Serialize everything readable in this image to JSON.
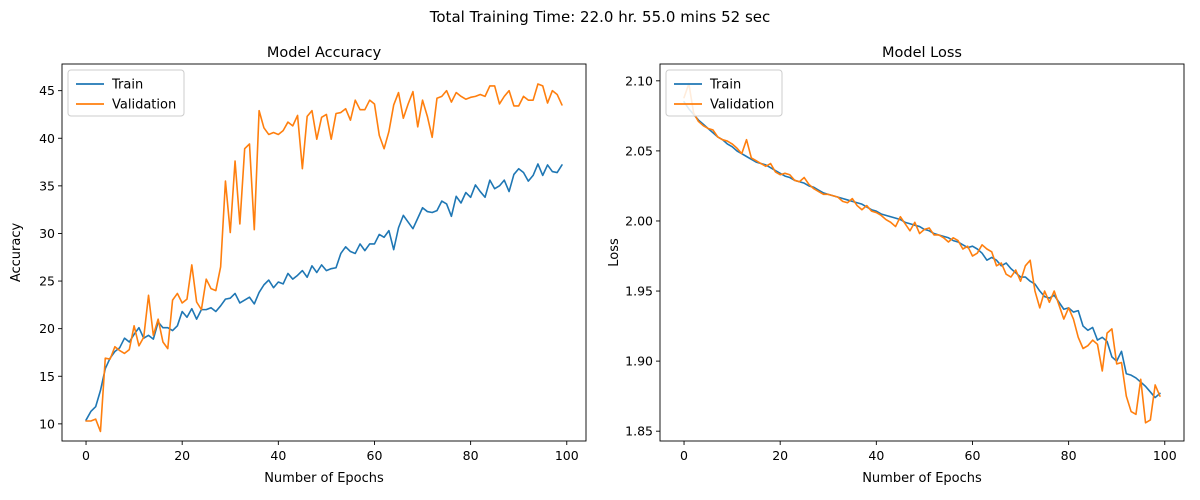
{
  "figure": {
    "suptitle": "Total Training Time: 22.0 hr. 55.0 mins 52 sec",
    "colors": {
      "train": "#1f77b4",
      "validation": "#ff7f0e"
    }
  },
  "chart_data": [
    {
      "type": "line",
      "title": "Model Accuracy",
      "xlabel": "Number of Epochs",
      "ylabel": "Accuracy",
      "xlim": [
        -5,
        104
      ],
      "ylim": [
        8.2,
        47.8
      ],
      "xticks": [
        0,
        20,
        40,
        60,
        80,
        100
      ],
      "yticks": [
        10,
        15,
        20,
        25,
        30,
        35,
        40,
        45
      ],
      "legend": "upper-left",
      "grid": false,
      "series": [
        {
          "name": "Train",
          "color": "#1f77b4",
          "values": [
            10.4,
            11.3,
            11.8,
            13.5,
            15.8,
            16.9,
            17.6,
            18.0,
            19.0,
            18.6,
            19.4,
            20.1,
            19.0,
            19.3,
            18.9,
            20.7,
            20.1,
            20.1,
            19.8,
            20.3,
            21.8,
            21.2,
            22.1,
            21.0,
            22.0,
            22.0,
            22.2,
            21.8,
            22.4,
            23.1,
            23.2,
            23.7,
            22.7,
            23.0,
            23.3,
            22.6,
            23.8,
            24.6,
            25.1,
            24.3,
            24.9,
            24.7,
            25.8,
            25.2,
            25.6,
            26.1,
            25.4,
            26.6,
            25.9,
            26.7,
            26.1,
            26.3,
            26.4,
            27.9,
            28.6,
            28.1,
            27.9,
            28.9,
            28.2,
            28.9,
            28.9,
            29.9,
            29.6,
            30.3,
            28.3,
            30.6,
            31.9,
            31.2,
            30.5,
            31.6,
            32.7,
            32.3,
            32.2,
            32.4,
            33.4,
            33.1,
            31.8,
            33.9,
            33.2,
            34.3,
            33.8,
            35.1,
            34.4,
            33.8,
            35.6,
            34.7,
            35.0,
            35.6,
            34.4,
            36.2,
            36.8,
            36.4,
            35.5,
            36.1,
            37.3,
            36.1,
            37.2,
            36.5,
            36.4,
            37.2
          ]
        },
        {
          "name": "Validation",
          "color": "#ff7f0e",
          "values": [
            10.3,
            10.3,
            10.5,
            9.2,
            16.9,
            16.8,
            18.1,
            17.7,
            17.4,
            17.8,
            20.3,
            18.2,
            19.1,
            23.5,
            19.3,
            21.0,
            18.6,
            17.9,
            23.0,
            23.7,
            22.7,
            23.1,
            26.7,
            22.8,
            22.0,
            25.2,
            24.2,
            24.0,
            26.5,
            35.5,
            30.1,
            37.6,
            31.0,
            38.9,
            39.4,
            30.4,
            42.9,
            41.1,
            40.4,
            40.6,
            40.4,
            40.8,
            41.7,
            41.3,
            42.4,
            36.8,
            42.3,
            42.9,
            39.9,
            42.2,
            42.5,
            39.9,
            42.6,
            42.7,
            43.1,
            41.9,
            44.0,
            43.0,
            43.0,
            44.0,
            43.6,
            40.3,
            38.9,
            40.7,
            43.5,
            44.8,
            42.1,
            43.6,
            44.9,
            41.2,
            44.0,
            42.3,
            40.1,
            44.2,
            44.4,
            45.0,
            43.8,
            44.8,
            44.4,
            44.1,
            44.3,
            44.4,
            44.6,
            44.4,
            45.5,
            45.5,
            43.6,
            44.4,
            45.0,
            43.4,
            43.4,
            44.4,
            44.0,
            44.0,
            45.7,
            45.5,
            43.7,
            45.0,
            44.6,
            43.5
          ]
        }
      ]
    },
    {
      "type": "line",
      "title": "Model Loss",
      "xlabel": "Number of Epochs",
      "ylabel": "Loss",
      "xlim": [
        -5,
        104
      ],
      "ylim": [
        1.843,
        2.112
      ],
      "xticks": [
        0,
        20,
        40,
        60,
        80,
        100
      ],
      "yticks": [
        1.85,
        1.9,
        1.95,
        2.0,
        2.05,
        2.1
      ],
      "ytick_labels": [
        "1.85",
        "1.90",
        "1.95",
        "2.00",
        "2.05",
        "2.10"
      ],
      "legend": "upper-left",
      "grid": false,
      "series": [
        {
          "name": "Train",
          "color": "#1f77b4",
          "values": [
            2.085,
            2.08,
            2.076,
            2.072,
            2.069,
            2.066,
            2.063,
            2.06,
            2.058,
            2.055,
            2.053,
            2.05,
            2.048,
            2.046,
            2.044,
            2.042,
            2.041,
            2.04,
            2.038,
            2.036,
            2.034,
            2.032,
            2.031,
            2.029,
            2.028,
            2.027,
            2.025,
            2.024,
            2.022,
            2.02,
            2.019,
            2.018,
            2.017,
            2.016,
            2.015,
            2.014,
            2.013,
            2.012,
            2.01,
            2.008,
            2.007,
            2.005,
            2.004,
            2.003,
            2.002,
            2.001,
            1.999,
            1.998,
            1.997,
            1.996,
            1.994,
            1.993,
            1.991,
            1.99,
            1.989,
            1.988,
            1.986,
            1.985,
            1.983,
            1.981,
            1.982,
            1.98,
            1.977,
            1.972,
            1.974,
            1.972,
            1.968,
            1.97,
            1.966,
            1.963,
            1.96,
            1.96,
            1.957,
            1.955,
            1.95,
            1.946,
            1.945,
            1.947,
            1.942,
            1.937,
            1.938,
            1.935,
            1.936,
            1.925,
            1.922,
            1.924,
            1.915,
            1.917,
            1.914,
            1.903,
            1.9,
            1.907,
            1.891,
            1.89,
            1.888,
            1.885,
            1.882,
            1.878,
            1.874,
            1.877
          ]
        },
        {
          "name": "Validation",
          "color": "#ff7f0e",
          "values": [
            2.088,
            2.098,
            2.077,
            2.071,
            2.068,
            2.066,
            2.065,
            2.06,
            2.058,
            2.057,
            2.055,
            2.052,
            2.048,
            2.058,
            2.045,
            2.043,
            2.041,
            2.039,
            2.041,
            2.035,
            2.033,
            2.034,
            2.033,
            2.029,
            2.028,
            2.031,
            2.026,
            2.023,
            2.021,
            2.019,
            2.019,
            2.018,
            2.017,
            2.014,
            2.013,
            2.016,
            2.011,
            2.008,
            2.011,
            2.007,
            2.006,
            2.004,
            2.001,
            1.999,
            1.996,
            2.003,
            1.998,
            1.993,
            1.999,
            1.991,
            1.994,
            1.995,
            1.99,
            1.99,
            1.988,
            1.985,
            1.988,
            1.986,
            1.98,
            1.982,
            1.975,
            1.977,
            1.983,
            1.98,
            1.978,
            1.968,
            1.97,
            1.962,
            1.96,
            1.965,
            1.957,
            1.968,
            1.972,
            1.95,
            1.938,
            1.95,
            1.942,
            1.95,
            1.94,
            1.93,
            1.938,
            1.93,
            1.917,
            1.909,
            1.911,
            1.915,
            1.912,
            1.893,
            1.92,
            1.923,
            1.898,
            1.899,
            1.875,
            1.864,
            1.862,
            1.887,
            1.856,
            1.858,
            1.883,
            1.875
          ]
        }
      ]
    }
  ]
}
